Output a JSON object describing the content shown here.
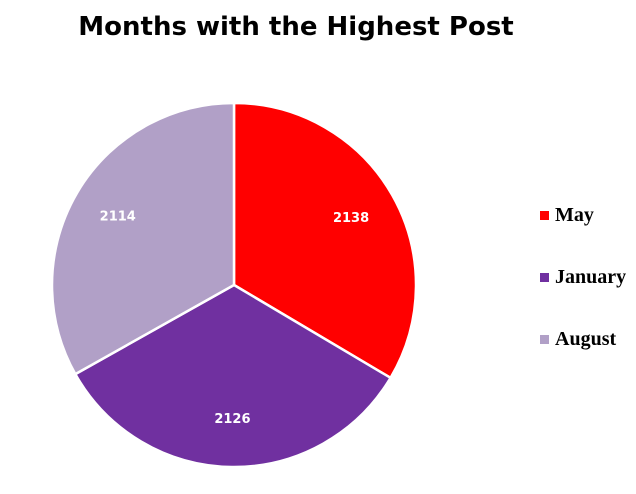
{
  "chart_data": {
    "type": "pie",
    "title": "Months with the Highest Post",
    "categories": [
      "May",
      "January",
      "August"
    ],
    "values": [
      2138,
      2126,
      2114
    ],
    "colors": [
      "#ff0000",
      "#7030a0",
      "#b1a0c7"
    ],
    "legend_position": "right",
    "data_labels": [
      "2138",
      "2126",
      "2114"
    ]
  }
}
